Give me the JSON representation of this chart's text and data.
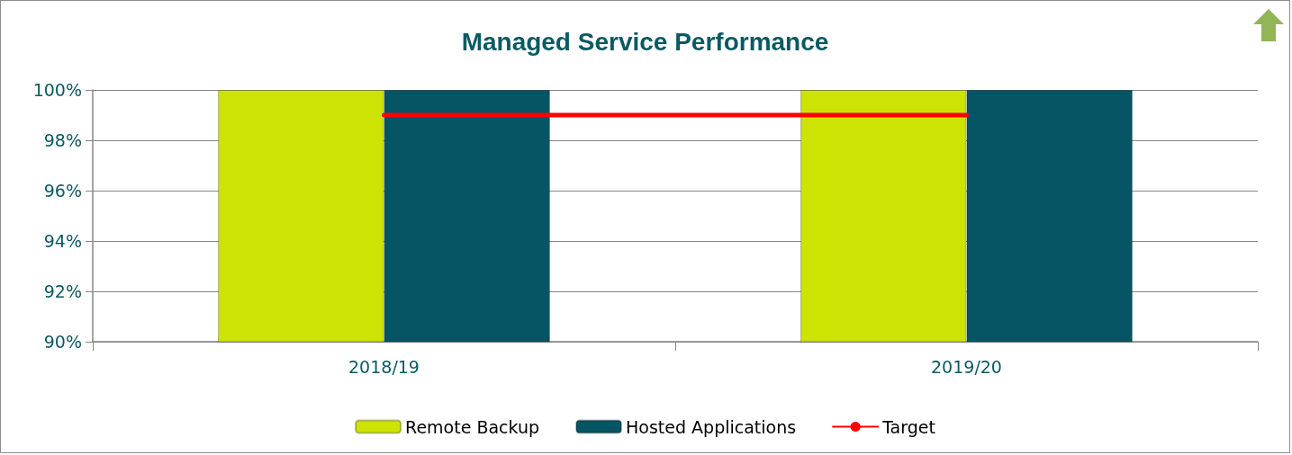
{
  "chart_data": {
    "type": "bar",
    "title": "Managed Service Performance",
    "categories": [
      "2018/19",
      "2019/20"
    ],
    "series": [
      {
        "name": "Remote Backup",
        "color": "#cce304",
        "values": [
          100,
          100
        ]
      },
      {
        "name": "Hosted Applications",
        "color": "#065564",
        "values": [
          100,
          100
        ]
      },
      {
        "name": "Target",
        "type": "line",
        "color": "#ff0000",
        "values": [
          99,
          99
        ]
      }
    ],
    "ylim": [
      90,
      100
    ],
    "yticks": [
      {
        "value": 90,
        "label": "90%"
      },
      {
        "value": 92,
        "label": "92%"
      },
      {
        "value": 94,
        "label": "94%"
      },
      {
        "value": 96,
        "label": "96%"
      },
      {
        "value": 98,
        "label": "98%"
      },
      {
        "value": 100,
        "label": "100%"
      }
    ],
    "grid": "y",
    "legend": "bottom",
    "marker": "none",
    "line_style": "solid"
  }
}
